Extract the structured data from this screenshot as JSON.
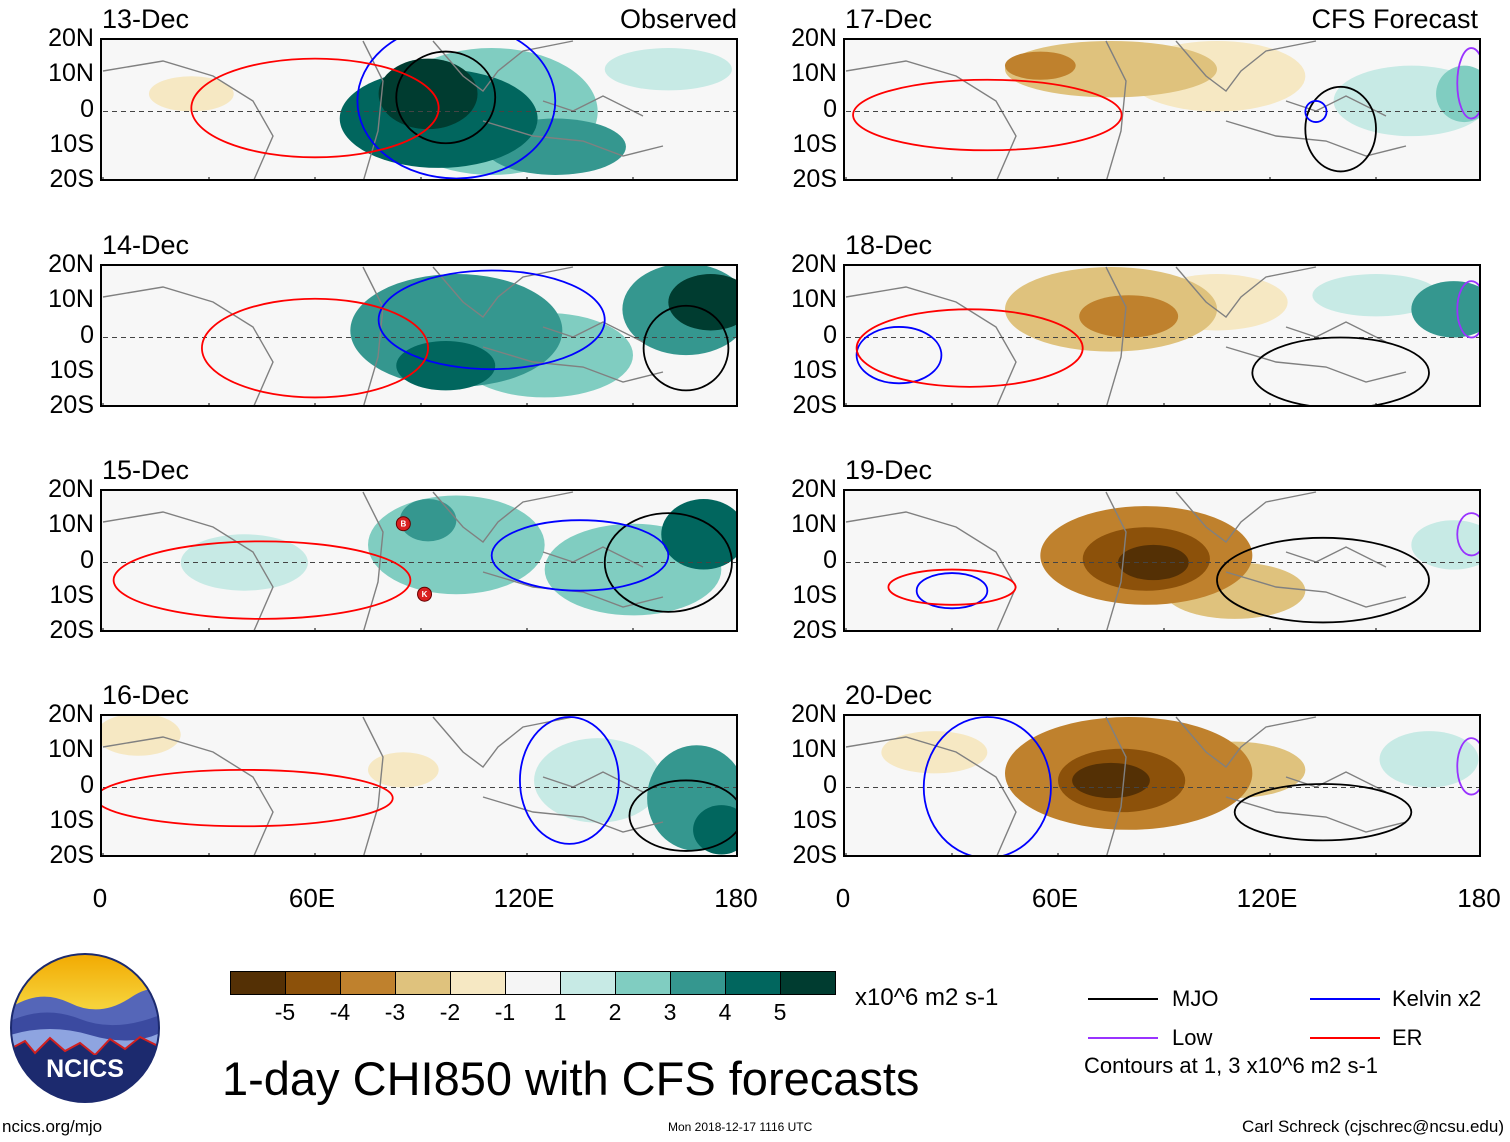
{
  "header": {
    "observed_title": "Observed",
    "forecast_title": "CFS Forecast"
  },
  "chart_data": {
    "type": "heatmap",
    "title": "1-day CHI850 with CFS forecasts",
    "variable": "CHI850 (850-hPa velocity potential anomaly)",
    "units": "x10^6 m2 s-1",
    "x_ticks": [
      "0",
      "60E",
      "120E",
      "180"
    ],
    "y_ticks": [
      "20N",
      "10N",
      "0",
      "10S",
      "20S"
    ],
    "lon_range": [
      0,
      180
    ],
    "lat_range": [
      -20,
      20
    ],
    "colorbar": {
      "ticks": [
        "-5",
        "-4",
        "-3",
        "-2",
        "-1",
        "1",
        "2",
        "3",
        "4",
        "5"
      ],
      "colors": [
        "#543005",
        "#8c510a",
        "#bf812d",
        "#dfc27d",
        "#f6e8c3",
        "#f5f5f5",
        "#c7eae5",
        "#80cdc1",
        "#35978f",
        "#01665e",
        "#003c30"
      ]
    },
    "legend": [
      {
        "name": "MJO",
        "color": "#000000"
      },
      {
        "name": "Kelvin x2",
        "color": "#0000ff"
      },
      {
        "name": "Low",
        "color": "#9933ff"
      },
      {
        "name": "ER",
        "color": "#ff0000"
      }
    ],
    "contour_note": "Contours at 1, 3 x10^6 m2 s-1",
    "storm_markers": [
      {
        "label": "B",
        "lon": 85,
        "lat": 11,
        "panel": "15-Dec"
      },
      {
        "label": "K",
        "lon": 91,
        "lat": -9,
        "panel": "15-Dec"
      }
    ],
    "panels": [
      {
        "date": "13-Dec",
        "kind": "Observed",
        "blobs": [
          {
            "lon": 95,
            "lat": -2,
            "rx": 28,
            "ry": 14,
            "value": 4
          },
          {
            "lon": 92,
            "lat": 5,
            "rx": 14,
            "ry": 10,
            "value": 5
          },
          {
            "lon": 128,
            "lat": -10,
            "rx": 20,
            "ry": 8,
            "value": 3
          },
          {
            "lon": 110,
            "lat": 0,
            "rx": 30,
            "ry": 18,
            "value": 2
          },
          {
            "lon": 160,
            "lat": 12,
            "rx": 18,
            "ry": 6,
            "value": 1
          },
          {
            "lon": 25,
            "lat": 5,
            "rx": 12,
            "ry": 5,
            "value": -1
          }
        ],
        "contours": [
          {
            "type": "MJO",
            "lon": 97,
            "lat": 4,
            "rx": 14,
            "ry": 13
          },
          {
            "type": "Kelvin",
            "lon": 100,
            "lat": 3,
            "rx": 28,
            "ry": 22
          },
          {
            "type": "ER",
            "lon": 60,
            "lat": 1,
            "rx": 35,
            "ry": 14
          }
        ]
      },
      {
        "date": "14-Dec",
        "kind": "Observed",
        "blobs": [
          {
            "lon": 100,
            "lat": 2,
            "rx": 30,
            "ry": 16,
            "value": 3
          },
          {
            "lon": 97,
            "lat": -8,
            "rx": 14,
            "ry": 7,
            "value": 4
          },
          {
            "lon": 172,
            "lat": 10,
            "rx": 12,
            "ry": 8,
            "value": 5
          },
          {
            "lon": 165,
            "lat": 8,
            "rx": 18,
            "ry": 13,
            "value": 3
          },
          {
            "lon": 125,
            "lat": -5,
            "rx": 25,
            "ry": 12,
            "value": 2
          }
        ],
        "contours": [
          {
            "type": "MJO",
            "lon": 165,
            "lat": -3,
            "rx": 12,
            "ry": 12
          },
          {
            "type": "Kelvin",
            "lon": 110,
            "lat": 5,
            "rx": 32,
            "ry": 14
          },
          {
            "type": "ER",
            "lon": 60,
            "lat": -3,
            "rx": 32,
            "ry": 14
          }
        ]
      },
      {
        "date": "15-Dec",
        "kind": "Observed",
        "blobs": [
          {
            "lon": 100,
            "lat": 5,
            "rx": 25,
            "ry": 14,
            "value": 2
          },
          {
            "lon": 92,
            "lat": 12,
            "rx": 8,
            "ry": 6,
            "value": 3
          },
          {
            "lon": 170,
            "lat": 8,
            "rx": 12,
            "ry": 10,
            "value": 4
          },
          {
            "lon": 150,
            "lat": -2,
            "rx": 25,
            "ry": 13,
            "value": 2
          },
          {
            "lon": 40,
            "lat": 0,
            "rx": 18,
            "ry": 8,
            "value": 1
          }
        ],
        "contours": [
          {
            "type": "MJO",
            "lon": 160,
            "lat": 0,
            "rx": 18,
            "ry": 14
          },
          {
            "type": "Kelvin",
            "lon": 135,
            "lat": 2,
            "rx": 25,
            "ry": 10
          },
          {
            "type": "ER",
            "lon": 45,
            "lat": -5,
            "rx": 42,
            "ry": 11
          }
        ]
      },
      {
        "date": "16-Dec",
        "kind": "Observed",
        "blobs": [
          {
            "lon": 168,
            "lat": -3,
            "rx": 14,
            "ry": 15,
            "value": 3
          },
          {
            "lon": 175,
            "lat": -12,
            "rx": 8,
            "ry": 7,
            "value": 4
          },
          {
            "lon": 140,
            "lat": 2,
            "rx": 18,
            "ry": 12,
            "value": 1
          },
          {
            "lon": 10,
            "lat": 15,
            "rx": 12,
            "ry": 6,
            "value": -1
          },
          {
            "lon": 85,
            "lat": 5,
            "rx": 10,
            "ry": 5,
            "value": -1
          }
        ],
        "contours": [
          {
            "type": "MJO",
            "lon": 165,
            "lat": -8,
            "rx": 16,
            "ry": 10
          },
          {
            "type": "Kelvin",
            "lon": 132,
            "lat": 2,
            "rx": 14,
            "ry": 18
          },
          {
            "type": "ER",
            "lon": 40,
            "lat": -3,
            "rx": 42,
            "ry": 8
          }
        ]
      },
      {
        "date": "17-Dec",
        "kind": "CFS Forecast",
        "blobs": [
          {
            "lon": 75,
            "lat": 12,
            "rx": 30,
            "ry": 8,
            "value": -2
          },
          {
            "lon": 105,
            "lat": 10,
            "rx": 25,
            "ry": 10,
            "value": -1
          },
          {
            "lon": 55,
            "lat": 13,
            "rx": 10,
            "ry": 4,
            "value": -3
          },
          {
            "lon": 160,
            "lat": 3,
            "rx": 22,
            "ry": 10,
            "value": 1
          },
          {
            "lon": 175,
            "lat": 5,
            "rx": 8,
            "ry": 8,
            "value": 2
          }
        ],
        "contours": [
          {
            "type": "MJO",
            "lon": 140,
            "lat": -5,
            "rx": 10,
            "ry": 12
          },
          {
            "type": "Kelvin",
            "lon": 133,
            "lat": 0,
            "rx": 3,
            "ry": 3
          },
          {
            "type": "ER",
            "lon": 40,
            "lat": -1,
            "rx": 38,
            "ry": 10
          },
          {
            "type": "Low",
            "lon": 177,
            "lat": 8,
            "rx": 4,
            "ry": 10
          }
        ]
      },
      {
        "date": "18-Dec",
        "kind": "CFS Forecast",
        "blobs": [
          {
            "lon": 75,
            "lat": 8,
            "rx": 30,
            "ry": 12,
            "value": -2
          },
          {
            "lon": 80,
            "lat": 6,
            "rx": 14,
            "ry": 6,
            "value": -3
          },
          {
            "lon": 105,
            "lat": 10,
            "rx": 20,
            "ry": 8,
            "value": -1
          },
          {
            "lon": 172,
            "lat": 8,
            "rx": 12,
            "ry": 8,
            "value": 3
          },
          {
            "lon": 150,
            "lat": 12,
            "rx": 18,
            "ry": 6,
            "value": 1
          }
        ],
        "contours": [
          {
            "type": "MJO",
            "lon": 140,
            "lat": -10,
            "rx": 25,
            "ry": 10
          },
          {
            "type": "Kelvin",
            "lon": 15,
            "lat": -5,
            "rx": 12,
            "ry": 8
          },
          {
            "type": "ER",
            "lon": 35,
            "lat": -3,
            "rx": 32,
            "ry": 11
          },
          {
            "type": "Low",
            "lon": 177,
            "lat": 8,
            "rx": 4,
            "ry": 8
          }
        ]
      },
      {
        "date": "19-Dec",
        "kind": "CFS Forecast",
        "blobs": [
          {
            "lon": 85,
            "lat": 2,
            "rx": 30,
            "ry": 14,
            "value": -3
          },
          {
            "lon": 87,
            "lat": 0,
            "rx": 10,
            "ry": 5,
            "value": -5
          },
          {
            "lon": 85,
            "lat": 1,
            "rx": 18,
            "ry": 9,
            "value": -4
          },
          {
            "lon": 110,
            "lat": -8,
            "rx": 20,
            "ry": 8,
            "value": -2
          },
          {
            "lon": 172,
            "lat": 5,
            "rx": 12,
            "ry": 7,
            "value": 1
          }
        ],
        "contours": [
          {
            "type": "MJO",
            "lon": 135,
            "lat": -5,
            "rx": 30,
            "ry": 12
          },
          {
            "type": "Kelvin",
            "lon": 30,
            "lat": -8,
            "rx": 10,
            "ry": 5
          },
          {
            "type": "ER",
            "lon": 30,
            "lat": -7,
            "rx": 18,
            "ry": 5
          },
          {
            "type": "Low",
            "lon": 177,
            "lat": 8,
            "rx": 4,
            "ry": 6
          }
        ]
      },
      {
        "date": "20-Dec",
        "kind": "CFS Forecast",
        "blobs": [
          {
            "lon": 80,
            "lat": 4,
            "rx": 35,
            "ry": 16,
            "value": -3
          },
          {
            "lon": 78,
            "lat": 2,
            "rx": 18,
            "ry": 9,
            "value": -4
          },
          {
            "lon": 75,
            "lat": 2,
            "rx": 11,
            "ry": 5,
            "value": -5
          },
          {
            "lon": 110,
            "lat": 5,
            "rx": 20,
            "ry": 8,
            "value": -2
          },
          {
            "lon": 25,
            "lat": 10,
            "rx": 15,
            "ry": 6,
            "value": -1
          },
          {
            "lon": 165,
            "lat": 8,
            "rx": 14,
            "ry": 8,
            "value": 1
          }
        ],
        "contours": [
          {
            "type": "MJO",
            "lon": 135,
            "lat": -7,
            "rx": 25,
            "ry": 8
          },
          {
            "type": "Kelvin",
            "lon": 40,
            "lat": 0,
            "rx": 18,
            "ry": 20
          },
          {
            "type": "Low",
            "lon": 177,
            "lat": 6,
            "rx": 4,
            "ry": 8
          }
        ]
      }
    ]
  },
  "footer": {
    "logo_text": "NCICS",
    "url": "ncics.org/mjo",
    "timestamp": "Mon 2018-12-17 1116 UTC",
    "credit": "Carl Schreck (cjschrec@ncsu.edu)"
  }
}
